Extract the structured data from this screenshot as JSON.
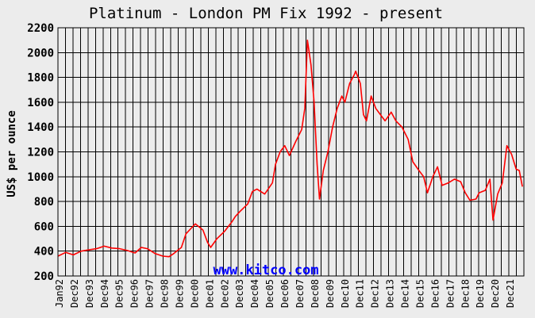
{
  "chart_data": {
    "type": "line",
    "title": "Platinum - London PM Fix 1992 - present",
    "xlabel": "",
    "ylabel": "US$ per ounce",
    "ylim": [
      200,
      2200
    ],
    "yticks": [
      200,
      400,
      600,
      800,
      1000,
      1200,
      1400,
      1600,
      1800,
      2000,
      2200
    ],
    "xlim": [
      1992.0,
      2022.2
    ],
    "grid": true,
    "watermark": "www.kitco.com",
    "xtick_labels": [
      "Jan92",
      "Dec92",
      "Dec93",
      "Dec94",
      "Dec95",
      "Dec96",
      "Dec97",
      "Dec98",
      "Dec99",
      "Dec00",
      "Dec01",
      "Dec02",
      "Dec03",
      "Dec04",
      "Dec05",
      "Dec06",
      "Dec07",
      "Dec08",
      "Dec09",
      "Dec10",
      "Dec11",
      "Dec12",
      "Dec13",
      "Dec14",
      "Dec15",
      "Dec16",
      "Dec17",
      "Dec18",
      "Dec19",
      "Dec20",
      "Dec21"
    ],
    "series": [
      {
        "color": "#ff0000",
        "x": [
          1992.0,
          1992.5,
          1993.0,
          1993.5,
          1994.0,
          1994.5,
          1995.0,
          1995.5,
          1996.0,
          1996.5,
          1997.0,
          1997.4,
          1997.8,
          1998.3,
          1998.8,
          1999.2,
          1999.5,
          2000.0,
          2000.3,
          2000.6,
          2000.9,
          2001.1,
          2001.4,
          2001.7,
          2001.9,
          2002.3,
          2002.8,
          2003.3,
          2003.5,
          2003.8,
          2004.3,
          2004.6,
          2004.9,
          2005.4,
          2005.9,
          2006.1,
          2006.4,
          2006.7,
          2007.0,
          2007.4,
          2007.8,
          2008.0,
          2008.17,
          2008.4,
          2008.6,
          2008.8,
          2008.95,
          2009.2,
          2009.5,
          2009.8,
          2010.1,
          2010.4,
          2010.6,
          2010.9,
          2011.2,
          2011.3,
          2011.6,
          2011.8,
          2012.0,
          2012.3,
          2012.6,
          2012.9,
          2013.2,
          2013.6,
          2013.9,
          2014.3,
          2014.7,
          2015.0,
          2015.4,
          2015.7,
          2015.95,
          2016.3,
          2016.6,
          2016.9,
          2017.3,
          2017.7,
          2018.1,
          2018.4,
          2018.7,
          2019.1,
          2019.3,
          2019.7,
          2020.0,
          2020.2,
          2020.5,
          2020.8,
          2021.1,
          2021.4,
          2021.7,
          2021.9,
          2022.1
        ],
        "y": [
          360,
          390,
          370,
          400,
          410,
          420,
          440,
          425,
          420,
          405,
          385,
          430,
          420,
          380,
          360,
          355,
          380,
          430,
          540,
          580,
          620,
          600,
          570,
          470,
          430,
          500,
          560,
          640,
          680,
          720,
          780,
          880,
          900,
          860,
          950,
          1100,
          1200,
          1250,
          1170,
          1280,
          1380,
          1550,
          2100,
          1900,
          1600,
          1100,
          820,
          1050,
          1200,
          1400,
          1550,
          1650,
          1600,
          1750,
          1820,
          1850,
          1750,
          1500,
          1450,
          1650,
          1550,
          1500,
          1450,
          1520,
          1450,
          1400,
          1300,
          1120,
          1050,
          1000,
          870,
          1000,
          1080,
          930,
          950,
          980,
          960,
          870,
          810,
          820,
          870,
          890,
          980,
          650,
          860,
          950,
          1250,
          1180,
          1060,
          1050,
          920
        ]
      }
    ]
  }
}
